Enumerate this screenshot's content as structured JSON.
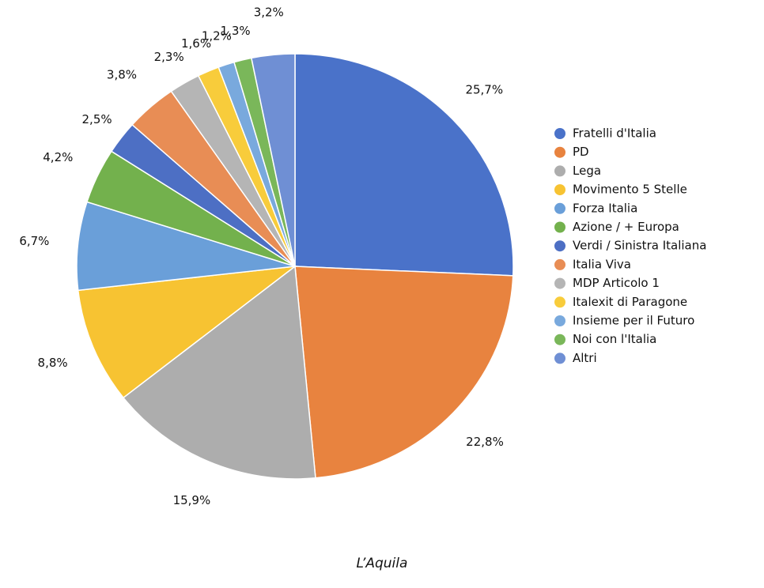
{
  "chart_data": {
    "type": "pie",
    "title": "L’Aquila",
    "categories": [
      "Fratelli d'Italia",
      "PD",
      "Lega",
      "Movimento 5 Stelle",
      "Forza Italia",
      "Azione / + Europa",
      "Verdi / Sinistra Italiana",
      "Italia Viva",
      "MDP Articolo 1",
      "Italexit di Paragone",
      "Insieme per il Futuro",
      "Noi con l'Italia",
      "Altri"
    ],
    "values": [
      25.7,
      22.8,
      15.9,
      8.8,
      6.7,
      4.2,
      2.5,
      3.8,
      2.3,
      1.6,
      1.2,
      1.3,
      3.2
    ],
    "value_labels": [
      "25,7%",
      "22,8%",
      "15,9%",
      "8,8%",
      "6,7%",
      "4,2%",
      "2,5%",
      "3,8%",
      "2,3%",
      "1,6%",
      "1,2%",
      "1,3%",
      "3,2%"
    ],
    "colors": [
      "#4a72c9",
      "#e8833f",
      "#adadad",
      "#f7c332",
      "#6a9fd9",
      "#73b14d",
      "#4d6fc4",
      "#e88d55",
      "#b5b5b5",
      "#f8cc3b",
      "#79a9dd",
      "#7ab75a",
      "#6f8fd4"
    ],
    "legend": "right"
  }
}
